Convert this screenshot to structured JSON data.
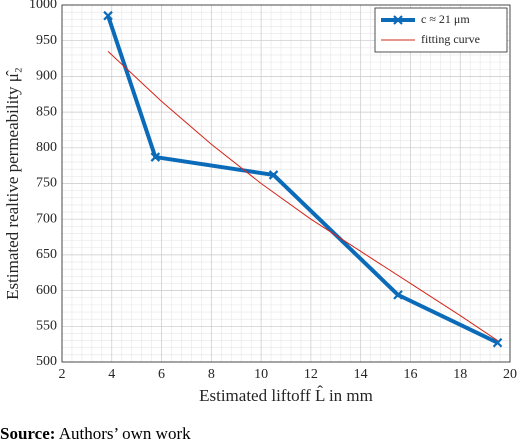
{
  "chart_data": {
    "type": "line",
    "xlabel": "Estimated liftoff L̂ in mm",
    "ylabel": "Estimated realtive permeability μ̂₂",
    "series": [
      {
        "name": "c ≈ 21 μm",
        "color": "#0b6bb8",
        "marker": "x",
        "x": [
          3.85,
          5.75,
          10.5,
          15.5,
          19.5
        ],
        "values": [
          985,
          787,
          762,
          594,
          527
        ]
      },
      {
        "name": "fitting curve",
        "color": "#d62418",
        "x": [
          3.85,
          6,
          8,
          10,
          12,
          14,
          16,
          18,
          19.5
        ],
        "values": [
          935,
          865,
          805,
          750,
          700,
          655,
          610,
          565,
          530
        ]
      }
    ],
    "xlim": [
      2,
      20
    ],
    "ylim": [
      500,
      1000
    ],
    "xticks": [
      2,
      4,
      6,
      8,
      10,
      12,
      14,
      16,
      18,
      20
    ],
    "yticks": [
      500,
      550,
      600,
      650,
      700,
      750,
      800,
      850,
      900,
      950,
      1000
    ],
    "xminorticks": [
      2.4,
      2.8,
      3.2,
      3.6,
      4.4,
      4.8,
      5.2,
      5.6,
      6.4,
      6.8,
      7.2,
      7.6,
      8.4,
      8.8,
      9.2,
      9.6,
      10.4,
      10.8,
      11.2,
      11.6,
      12.4,
      12.8,
      13.2,
      13.6,
      14.4,
      14.8,
      15.2,
      15.6,
      16.4,
      16.8,
      17.2,
      17.6,
      18.4,
      18.8,
      19.2,
      19.6
    ],
    "yminorticks": [
      510,
      520,
      530,
      540,
      560,
      570,
      580,
      590,
      610,
      620,
      630,
      640,
      660,
      670,
      680,
      690,
      710,
      720,
      730,
      740,
      760,
      770,
      780,
      790,
      810,
      820,
      830,
      840,
      860,
      870,
      880,
      890,
      910,
      920,
      930,
      940,
      960,
      970,
      980,
      990
    ],
    "grid": true,
    "legend": "upper right"
  },
  "source": {
    "label": "Source:",
    "text": "Authors’ own work"
  }
}
